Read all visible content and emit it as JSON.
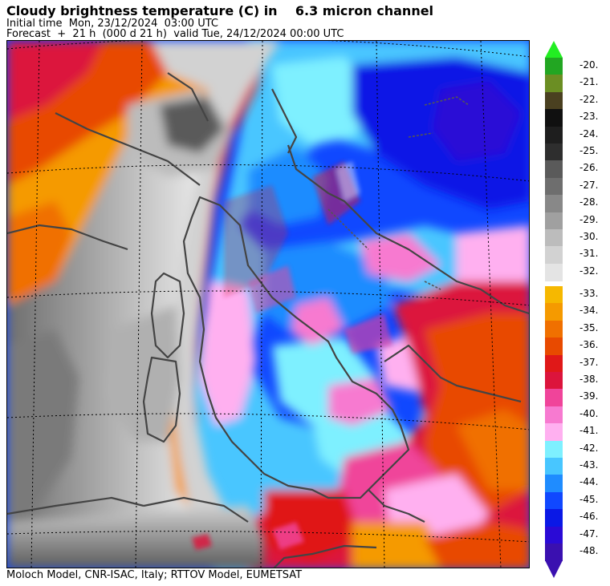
{
  "header": {
    "title": "Cloudy brightness temperature (C) in    6.3 micron channel",
    "initial_time": "Initial time  Mon, 23/12/2024  03:00 UTC",
    "forecast": "Forecast  +  21 h  (000 d 21 h)  valid Tue, 24/12/2024 00:00 UTC"
  },
  "footer": {
    "credit": "Moloch Model, CNR-ISAC, Italy; RTTOV Model, EUMETSAT"
  },
  "colorbar": {
    "upper": [
      {
        "label": "-20.",
        "color": "#22a622"
      },
      {
        "label": "-21.",
        "color": "#6b8e23"
      },
      {
        "label": "-22.",
        "color": "#4a4020"
      },
      {
        "label": "-23.",
        "color": "#101010"
      },
      {
        "label": "-24.",
        "color": "#1e1e1e"
      },
      {
        "label": "-25.",
        "color": "#2e2e2e"
      },
      {
        "label": "-26.",
        "color": "#5a5a5a"
      },
      {
        "label": "-27.",
        "color": "#6e6e6e"
      },
      {
        "label": "-28.",
        "color": "#888888"
      },
      {
        "label": "-29.",
        "color": "#a0a0a0"
      },
      {
        "label": "-30.",
        "color": "#bcbcbc"
      },
      {
        "label": "-31.",
        "color": "#d2d2d2"
      },
      {
        "label": "-32.",
        "color": "#e4e4e4"
      }
    ],
    "lower": [
      {
        "label": "-33.",
        "color": "#f6b800"
      },
      {
        "label": "-34.",
        "color": "#f59a00"
      },
      {
        "label": "-35.",
        "color": "#f07000"
      },
      {
        "label": "-36.",
        "color": "#e84a00"
      },
      {
        "label": "-37.",
        "color": "#e01818"
      },
      {
        "label": "-38.",
        "color": "#dc143c"
      },
      {
        "label": "-39.",
        "color": "#f0449a"
      },
      {
        "label": "-40.",
        "color": "#f77ad0"
      },
      {
        "label": "-41.",
        "color": "#ffb0f0"
      },
      {
        "label": "-42.",
        "color": "#7ef0ff"
      },
      {
        "label": "-43.",
        "color": "#48c6ff"
      },
      {
        "label": "-44.",
        "color": "#1f8cff"
      },
      {
        "label": "-45.",
        "color": "#1048ff"
      },
      {
        "label": "-46.",
        "color": "#0a18e6"
      },
      {
        "label": "-47.",
        "color": "#2a0ad6"
      },
      {
        "label": "-48.",
        "color": "#3a10b0"
      }
    ],
    "top_arrow_color": "#22ee22",
    "bottom_arrow_color": "#3a10b0"
  }
}
